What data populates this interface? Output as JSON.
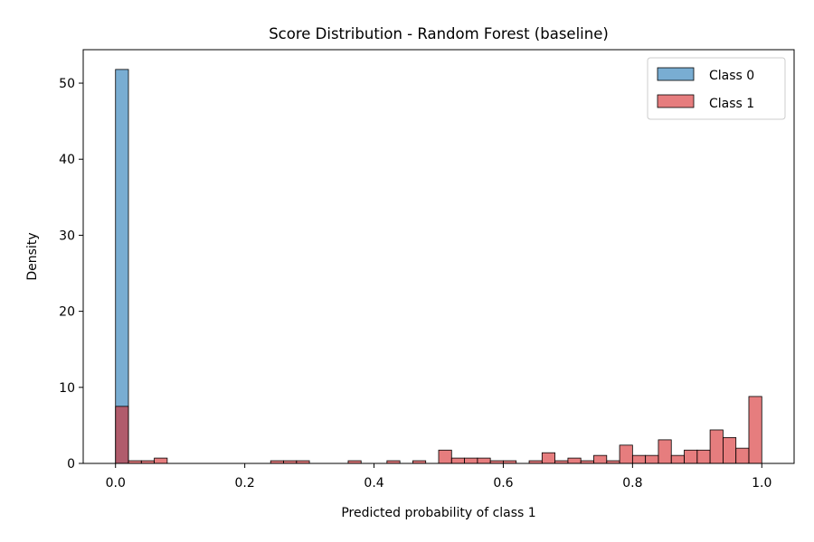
{
  "chart_data": {
    "type": "bar",
    "title": "Score Distribution - Random Forest (baseline)",
    "xlabel": "Predicted probability of class 1",
    "ylabel": "Density",
    "xlim": [
      -0.05,
      1.05
    ],
    "ylim": [
      0,
      54.4
    ],
    "xticks": [
      {
        "value": 0.0,
        "label": "0.0"
      },
      {
        "value": 0.2,
        "label": "0.2"
      },
      {
        "value": 0.4,
        "label": "0.4"
      },
      {
        "value": 0.6,
        "label": "0.6"
      },
      {
        "value": 0.8,
        "label": "0.8"
      },
      {
        "value": 1.0,
        "label": "1.0"
      }
    ],
    "yticks": [
      {
        "value": 0,
        "label": "0"
      },
      {
        "value": 10,
        "label": "10"
      },
      {
        "value": 20,
        "label": "20"
      },
      {
        "value": 30,
        "label": "30"
      },
      {
        "value": 40,
        "label": "40"
      },
      {
        "value": 50,
        "label": "50"
      }
    ],
    "grid": false,
    "legend_position": "top-right",
    "bin_width": 0.02,
    "series": [
      {
        "name": "Class 0",
        "color": "#1f77b4",
        "alpha": 0.6,
        "bins": [
          {
            "x": 0.0,
            "density": 51.8
          }
        ]
      },
      {
        "name": "Class 1",
        "color": "#d62728",
        "alpha": 0.6,
        "bins": [
          {
            "x": 0.0,
            "density": 7.5
          },
          {
            "x": 0.02,
            "density": 0.35
          },
          {
            "x": 0.04,
            "density": 0.35
          },
          {
            "x": 0.06,
            "density": 0.7
          },
          {
            "x": 0.24,
            "density": 0.35
          },
          {
            "x": 0.26,
            "density": 0.35
          },
          {
            "x": 0.28,
            "density": 0.35
          },
          {
            "x": 0.36,
            "density": 0.35
          },
          {
            "x": 0.42,
            "density": 0.35
          },
          {
            "x": 0.46,
            "density": 0.35
          },
          {
            "x": 0.5,
            "density": 1.75
          },
          {
            "x": 0.52,
            "density": 0.7
          },
          {
            "x": 0.54,
            "density": 0.7
          },
          {
            "x": 0.56,
            "density": 0.7
          },
          {
            "x": 0.58,
            "density": 0.35
          },
          {
            "x": 0.6,
            "density": 0.35
          },
          {
            "x": 0.64,
            "density": 0.35
          },
          {
            "x": 0.66,
            "density": 1.4
          },
          {
            "x": 0.68,
            "density": 0.35
          },
          {
            "x": 0.7,
            "density": 0.7
          },
          {
            "x": 0.72,
            "density": 0.35
          },
          {
            "x": 0.74,
            "density": 1.05
          },
          {
            "x": 0.76,
            "density": 0.35
          },
          {
            "x": 0.78,
            "density": 2.4
          },
          {
            "x": 0.8,
            "density": 1.05
          },
          {
            "x": 0.82,
            "density": 1.05
          },
          {
            "x": 0.84,
            "density": 3.1
          },
          {
            "x": 0.86,
            "density": 1.05
          },
          {
            "x": 0.88,
            "density": 1.75
          },
          {
            "x": 0.9,
            "density": 1.75
          },
          {
            "x": 0.92,
            "density": 4.4
          },
          {
            "x": 0.94,
            "density": 3.4
          },
          {
            "x": 0.96,
            "density": 2.0
          },
          {
            "x": 0.98,
            "density": 8.8
          }
        ]
      }
    ]
  }
}
